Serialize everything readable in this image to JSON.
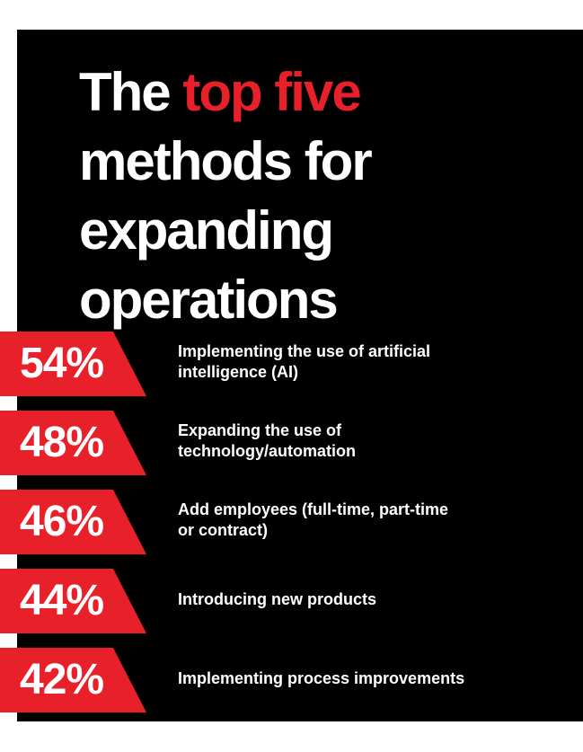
{
  "title": {
    "line1_prefix": "The ",
    "line1_accent": "top five",
    "line2": "methods for",
    "line3": "expanding",
    "line4": "operations"
  },
  "colors": {
    "background": "#000000",
    "accent": "#e8202a",
    "text": "#ffffff"
  },
  "chart_data": {
    "type": "bar",
    "unit": "%",
    "categories": [
      "Implementing the use of artificial intelligence (AI)",
      "Expanding the use of technology/automation",
      "Add employees (full-time, part-time or contract)",
      "Introducing new products",
      "Implementing process improvements"
    ],
    "values": [
      54,
      48,
      46,
      44,
      42
    ],
    "display_values": [
      "54%",
      "48%",
      "46%",
      "44%",
      "42%"
    ],
    "label_lines": [
      [
        "Implementing the use of artificial",
        "intelligence (AI)"
      ],
      [
        "Expanding the use of",
        "technology/automation"
      ],
      [
        "Add employees (full-time, part-time",
        "or contract)"
      ],
      [
        "Introducing new products"
      ],
      [
        "Implementing process improvements"
      ]
    ]
  }
}
